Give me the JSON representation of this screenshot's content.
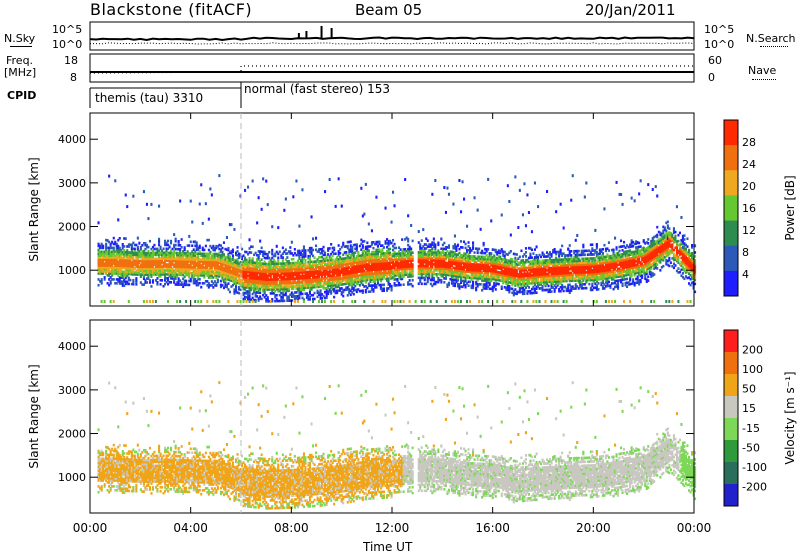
{
  "header": {
    "station": "Blackstone (fitACF)",
    "beam": "Beam 05",
    "date": "20/Jan/2011"
  },
  "top_panels": {
    "nsky_label": "N.Sky",
    "nsky_ticks": [
      "10^5",
      "10^0"
    ],
    "nsearch_label": "N.Search",
    "freq_label": "Freq.",
    "freq_unit": "[MHz]",
    "freq_ticks": [
      "18",
      "8"
    ],
    "nave_label": "Nave",
    "nave_ticks": [
      "60",
      "0"
    ],
    "cpid_label": "CPID",
    "cpid_segments": [
      {
        "name": "themis (tau) 3310",
        "start_h": 0,
        "end_h": 6
      },
      {
        "name": "normal (fast stereo) 153",
        "start_h": 6,
        "end_h": 24
      }
    ]
  },
  "chart_data": [
    {
      "type": "heatmap",
      "panel": "power",
      "xlabel": "Time UT",
      "ylabel": "Slant Range [km]",
      "colorbar_label": "Power [dB]",
      "colorbar_ticks": [
        "28",
        "24",
        "20",
        "16",
        "12",
        "8",
        "4"
      ],
      "colorbar_colors": [
        "#1e1eff",
        "#2c5ab8",
        "#2f8c50",
        "#66c830",
        "#f0a820",
        "#f07010",
        "#ff2a00"
      ],
      "xlim": [
        0,
        24
      ],
      "ylim": [
        180,
        4600
      ],
      "x_ticks": [
        "00:00",
        "04:00",
        "08:00",
        "12:00",
        "16:00",
        "20:00",
        "00:00"
      ],
      "y_ticks": [
        "1000",
        "2000",
        "3000",
        "4000"
      ],
      "profile_hours": [
        0,
        1,
        2,
        3,
        4,
        5,
        6,
        7,
        8,
        9,
        10,
        11,
        12,
        13,
        14,
        15,
        16,
        17,
        18,
        19,
        20,
        21,
        22,
        23,
        24
      ],
      "profile_center_km": [
        1150,
        1150,
        1120,
        1130,
        1110,
        1100,
        900,
        840,
        860,
        900,
        960,
        1060,
        1100,
        1140,
        1130,
        1050,
        1020,
        900,
        950,
        980,
        1000,
        1080,
        1200,
        1600,
        1000
      ]
    },
    {
      "type": "heatmap",
      "panel": "velocity",
      "xlabel": "Time UT",
      "ylabel": "Slant Range [km]",
      "colorbar_label": "Velocity [m s^-1]",
      "colorbar_ticks": [
        "200",
        "100",
        "50",
        "15",
        "-15",
        "-50",
        "-100",
        "-200"
      ],
      "colorbar_colors": [
        "#2222cc",
        "#2a6e5c",
        "#2e9a3c",
        "#7ed858",
        "#c8c8c0",
        "#f0a418",
        "#f07010",
        "#ff1e1e"
      ],
      "xlim": [
        0,
        24
      ],
      "ylim": [
        180,
        4600
      ],
      "x_ticks": [
        "00:00",
        "04:00",
        "08:00",
        "12:00",
        "16:00",
        "20:00",
        "00:00"
      ],
      "y_ticks": [
        "1000",
        "2000",
        "3000",
        "4000"
      ]
    }
  ],
  "colors": {
    "rtp_orange": "#f5a81e",
    "rtp_gray": "#c8c8c0",
    "rtp_green": "#7ed858",
    "rtp_blue": "#2d4fb4",
    "rtp_red": "#ff2a00"
  }
}
